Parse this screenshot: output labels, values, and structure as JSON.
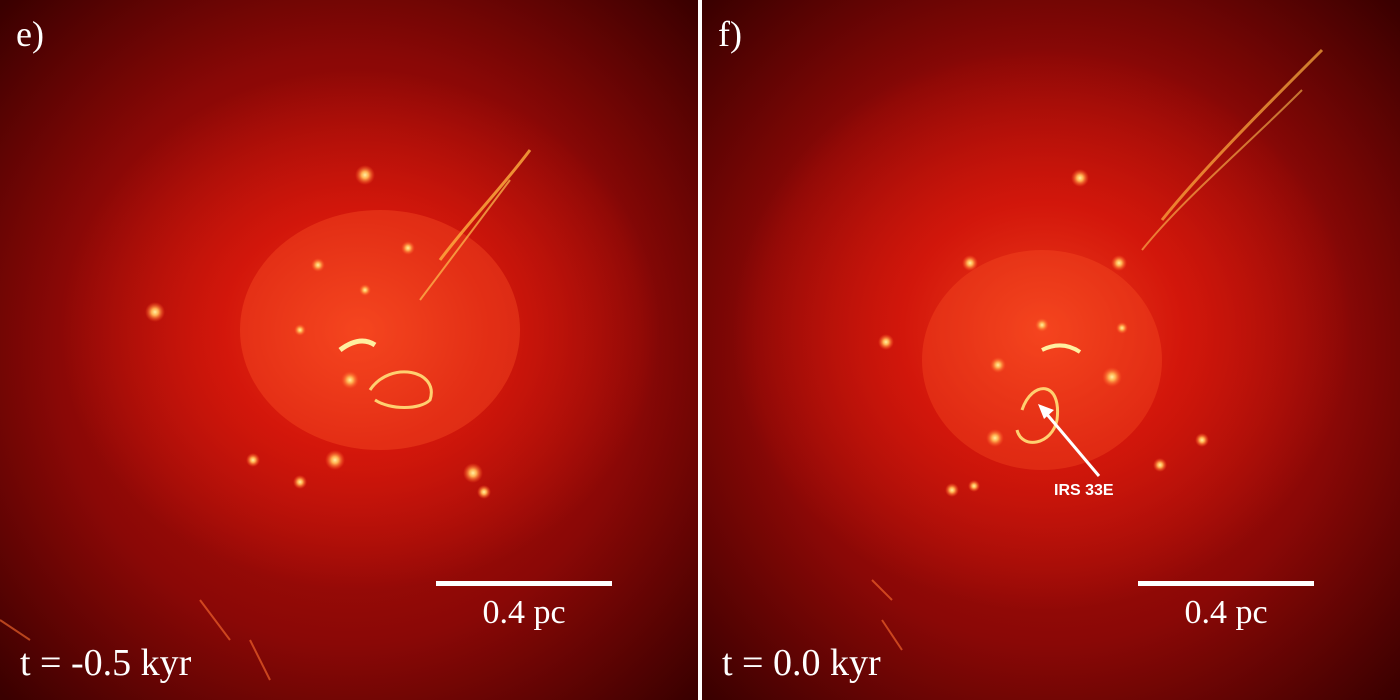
{
  "panels": [
    {
      "label": "e)",
      "time": "t = -0.5 kyr",
      "scale": "0.4 pc"
    },
    {
      "label": "f)",
      "time": "t = 0.0 kyr",
      "scale": "0.4 pc",
      "annotation": "IRS 33E"
    }
  ],
  "colors": {
    "background": "#3a0000",
    "gas": "#e01008",
    "core": "#ff4020",
    "stars": "#ffb050"
  }
}
